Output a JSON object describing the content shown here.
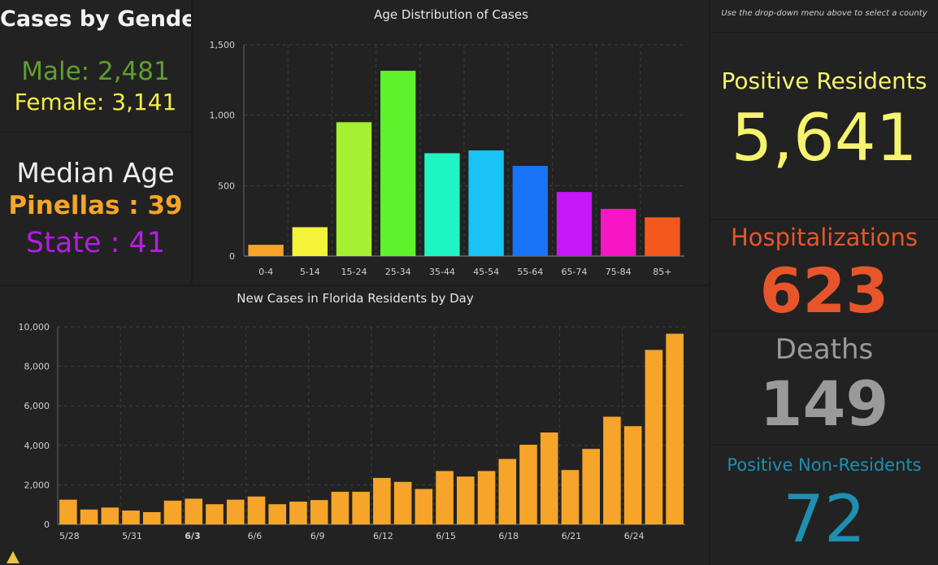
{
  "gender": {
    "title": "Cases by Gender",
    "male_text": "Male: 2,481",
    "female_text": "Female: 3,141",
    "male_color": "#5f9e2f",
    "female_color": "#f4ee44"
  },
  "median_age": {
    "title": "Median Age",
    "county_text": "Pinellas : 39",
    "state_text": "State : 41"
  },
  "instructions": "Use the drop-down menu above to select a county",
  "kpis": {
    "positive": {
      "label": "Positive Residents",
      "value": "5,641",
      "color": "#f6f36e"
    },
    "hospital": {
      "label": "Hospitalizations",
      "value": "623",
      "color": "#e8552a"
    },
    "deaths": {
      "label": "Deaths",
      "value": "149",
      "color": "#9a9a9a"
    },
    "nonres": {
      "label": "Positive Non-Residents",
      "value": "72",
      "color": "#1e8fb0"
    }
  },
  "chart_data": [
    {
      "type": "bar",
      "title": "Age Distribution of Cases",
      "categories": [
        "0-4",
        "5-14",
        "15-24",
        "25-34",
        "35-44",
        "45-54",
        "55-64",
        "65-74",
        "75-84",
        "85+"
      ],
      "values": [
        80,
        205,
        950,
        1315,
        730,
        750,
        640,
        455,
        335,
        275
      ],
      "colors": [
        "#f6a52a",
        "#f4f33a",
        "#a6f032",
        "#5ef32c",
        "#1ef5c4",
        "#19c3f5",
        "#1973f7",
        "#c618f7",
        "#f715c4",
        "#f5581c"
      ],
      "ylim": [
        0,
        1500
      ],
      "yticks": [
        0,
        500,
        1000,
        1500
      ],
      "ytick_labels": [
        "0",
        "500",
        "1,000",
        "1,500"
      ],
      "grid": true
    },
    {
      "type": "bar",
      "title": "New Cases in Florida Residents by Day",
      "x": [
        "5/28",
        "5/29",
        "5/30",
        "5/31",
        "6/1",
        "6/2",
        "6/3",
        "6/4",
        "6/5",
        "6/6",
        "6/7",
        "6/8",
        "6/9",
        "6/10",
        "6/11",
        "6/12",
        "6/13",
        "6/14",
        "6/15",
        "6/16",
        "6/17",
        "6/18",
        "6/19",
        "6/20",
        "6/21",
        "6/22",
        "6/23",
        "6/24",
        "6/25",
        "6/26"
      ],
      "values": [
        1250,
        750,
        850,
        700,
        620,
        1200,
        1300,
        1020,
        1250,
        1410,
        1020,
        1150,
        1230,
        1650,
        1650,
        2350,
        2150,
        1790,
        2700,
        2420,
        2700,
        3310,
        4030,
        4650,
        2750,
        3820,
        5450,
        4970,
        8830,
        9650
      ],
      "xtick_labels": [
        "5/28",
        "5/31",
        "6/3",
        "6/6",
        "6/9",
        "6/12",
        "6/15",
        "6/18",
        "6/21",
        "6/24"
      ],
      "xtick_indices": [
        0,
        3,
        6,
        9,
        12,
        15,
        18,
        21,
        24,
        27
      ],
      "bold_xtick": "6/3",
      "color": "#f6a52a",
      "ylim": [
        0,
        10000
      ],
      "yticks": [
        0,
        2000,
        4000,
        6000,
        8000,
        10000
      ],
      "ytick_labels": [
        "0",
        "2,000",
        "4,000",
        "6,000",
        "8,000",
        "10,000"
      ],
      "grid": true
    }
  ]
}
